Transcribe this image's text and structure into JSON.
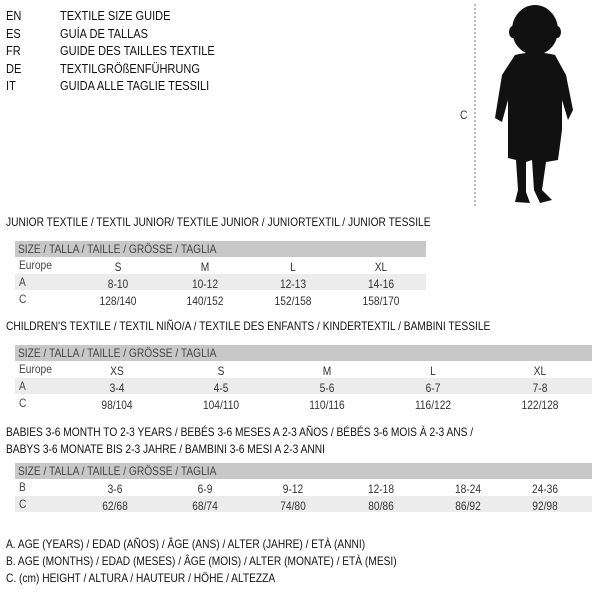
{
  "header": {
    "languages": [
      {
        "code": "EN",
        "title": "TEXTILE SIZE GUIDE"
      },
      {
        "code": "ES",
        "title": "GUÍA DE TALLAS"
      },
      {
        "code": "FR",
        "title": "GUIDE DES TAILLES TEXTILE"
      },
      {
        "code": "DE",
        "title": "TEXTILGRÖßENFÜHRUNG"
      },
      {
        "code": "IT",
        "title": "GUIDA ALLE TAGLIE TESSILI"
      }
    ]
  },
  "figure": {
    "height_marker": "C"
  },
  "size_header": "SIZE / TALLA / TAILLE / GRÖSSE / TAGLIA",
  "junior": {
    "title": "JUNIOR TEXTILE / TEXTIL JUNIOR/ TEXTILE JUNIOR / JUNIORTEXTIL / JUNIOR TESSILE",
    "rows": [
      {
        "label": "Europe",
        "values": [
          "S",
          "M",
          "L",
          "XL"
        ]
      },
      {
        "label": "A",
        "values": [
          "8-10",
          "10-12",
          "12-13",
          "14-16"
        ]
      },
      {
        "label": "C",
        "values": [
          "128/140",
          "140/152",
          "152/158",
          "158/170"
        ]
      }
    ]
  },
  "children": {
    "title": "CHILDREN'S TEXTILE / TEXTIL NIÑO/A / TEXTILE DES ENFANTS / KINDERTEXTIL / BAMBINI TESSILE",
    "rows": [
      {
        "label": "Europe",
        "values": [
          "XS",
          "S",
          "M",
          "L",
          "XL"
        ]
      },
      {
        "label": "A",
        "values": [
          "3-4",
          "4-5",
          "5-6",
          "6-7",
          "7-8"
        ]
      },
      {
        "label": "C",
        "values": [
          "98/104",
          "104/110",
          "110/116",
          "116/122",
          "122/128"
        ]
      }
    ]
  },
  "babies": {
    "title_line1": "BABIES 3-6 MONTH TO 2-3 YEARS / BEBÉS 3-6 MESES A 2-3 AÑOS / BÉBÉS 3-6 MOIS À 2-3 ANS /",
    "title_line2": "BABYS 3-6 MONATE BIS 2-3 JAHRE / BAMBINI 3-6 MESI A 2-3 ANNI",
    "rows": [
      {
        "label": "B",
        "values": [
          "3-6",
          "6-9",
          "9-12",
          "12-18",
          "18-24",
          "24-36"
        ]
      },
      {
        "label": "C",
        "values": [
          "62/68",
          "68/74",
          "74/80",
          "80/86",
          "86/92",
          "92/98"
        ]
      }
    ]
  },
  "legend": [
    "A. AGE (YEARS) / EDAD (AÑOS) / ÂGE (ANS) / ALTER (JAHRE) / ETÀ (ANNI)",
    "B. AGE (MONTHS) / EDAD (MESES) / ÂGE (MOIS) / ALTER (MONATE) / ETÀ (MESI)",
    "C. (cm) HEIGHT / ALTURA / HAUTEUR / HÖHE / ALTEZZA"
  ]
}
